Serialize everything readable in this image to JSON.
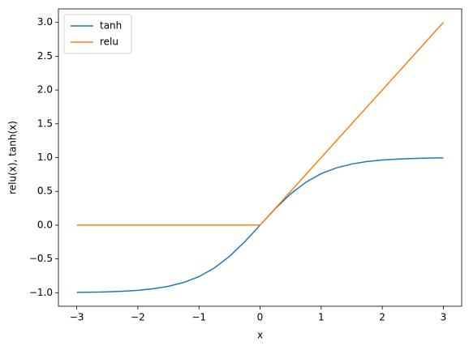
{
  "chart_data": {
    "type": "line",
    "xlabel": "x",
    "ylabel": "relu(x), tanh(x)",
    "x": [
      -3,
      -2.75,
      -2.5,
      -2.25,
      -2,
      -1.75,
      -1.5,
      -1.25,
      -1,
      -0.75,
      -0.5,
      -0.25,
      0,
      0.25,
      0.5,
      0.75,
      1,
      1.25,
      1.5,
      1.75,
      2,
      2.25,
      2.5,
      2.75,
      3
    ],
    "series": [
      {
        "name": "tanh",
        "color": "#1f77b4",
        "values": [
          -0.995,
          -0.992,
          -0.987,
          -0.978,
          -0.964,
          -0.941,
          -0.905,
          -0.848,
          -0.762,
          -0.635,
          -0.462,
          -0.245,
          0,
          0.245,
          0.462,
          0.635,
          0.762,
          0.848,
          0.905,
          0.941,
          0.964,
          0.978,
          0.987,
          0.992,
          0.995
        ]
      },
      {
        "name": "relu",
        "color": "#ff7f0e",
        "values": [
          0,
          0,
          0,
          0,
          0,
          0,
          0,
          0,
          0,
          0,
          0,
          0,
          0,
          0.25,
          0.5,
          0.75,
          1,
          1.25,
          1.5,
          1.75,
          2,
          2.25,
          2.5,
          2.75,
          3
        ]
      }
    ],
    "xlim": [
      -3.3,
      3.3
    ],
    "ylim": [
      -1.2,
      3.2
    ],
    "xticks": [
      {
        "value": -3,
        "label": "−3"
      },
      {
        "value": -2,
        "label": "−2"
      },
      {
        "value": -1,
        "label": "−1"
      },
      0,
      1,
      2,
      3
    ],
    "yticks": [
      {
        "value": -1,
        "label": "−1.0"
      },
      {
        "value": -0.5,
        "label": "−0.5"
      },
      {
        "value": 0,
        "label": "0.0"
      },
      0.5,
      {
        "value": 1,
        "label": "1.0"
      },
      1.5,
      {
        "value": 2,
        "label": "2.0"
      },
      2.5,
      {
        "value": 3,
        "label": "3.0"
      }
    ],
    "grid": false,
    "legend": "upper-left"
  }
}
